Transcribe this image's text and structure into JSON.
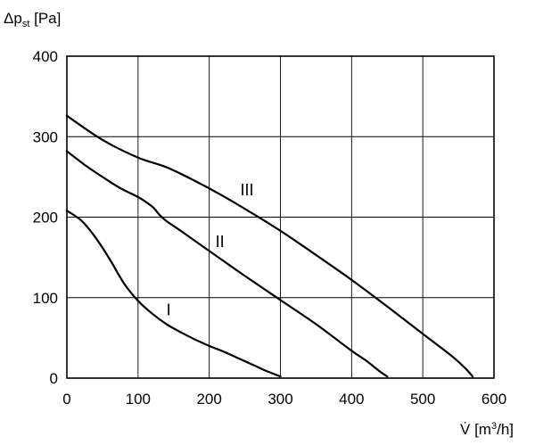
{
  "chart_data": {
    "type": "line",
    "ylabel_main": "Δp",
    "ylabel_sub": "st",
    "ylabel_unit": " [Pa]",
    "xlabel_main": "V̇",
    "xlabel_unit_pre": " [m",
    "xlabel_unit_sup": "3",
    "xlabel_unit_post": "/h]",
    "xlim": [
      0,
      600
    ],
    "ylim": [
      0,
      400
    ],
    "xticks": [
      0,
      100,
      200,
      300,
      400,
      500,
      600
    ],
    "yticks": [
      0,
      100,
      200,
      300,
      400
    ],
    "grid": true,
    "series": [
      {
        "name": "I",
        "x": [
          0,
          20,
          40,
          60,
          80,
          100,
          120,
          140,
          160,
          180,
          200,
          220,
          240,
          260,
          280,
          300
        ],
        "y": [
          208,
          196,
          175,
          148,
          118,
          96,
          80,
          67,
          57,
          48,
          40,
          33,
          25,
          17,
          9,
          2
        ]
      },
      {
        "name": "II",
        "x": [
          0,
          25,
          50,
          75,
          100,
          120,
          130,
          140,
          160,
          200,
          250,
          300,
          350,
          400,
          420,
          440,
          450
        ],
        "y": [
          282,
          265,
          250,
          236,
          225,
          213,
          203,
          195,
          183,
          158,
          127,
          97,
          67,
          34,
          22,
          8,
          2
        ]
      },
      {
        "name": "III",
        "x": [
          0,
          50,
          100,
          140,
          180,
          220,
          260,
          300,
          350,
          400,
          450,
          500,
          540,
          560,
          570
        ],
        "y": [
          326,
          296,
          274,
          262,
          245,
          226,
          205,
          183,
          153,
          122,
          89,
          55,
          28,
          12,
          2
        ]
      }
    ],
    "curve_labels": [
      {
        "text": "I",
        "x": 143,
        "y": 78
      },
      {
        "text": "II",
        "x": 215,
        "y": 163
      },
      {
        "text": "III",
        "x": 253,
        "y": 227
      }
    ]
  }
}
